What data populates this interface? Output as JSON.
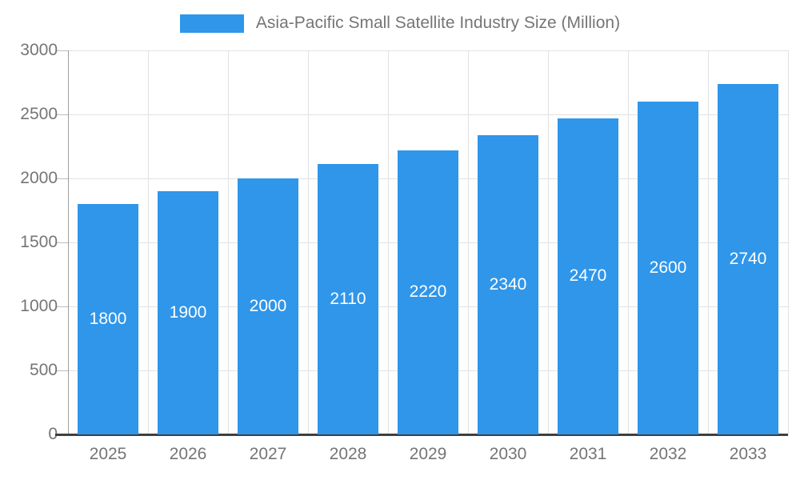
{
  "chart_data": {
    "type": "bar",
    "title": "Asia-Pacific Small Satellite Industry Size (Million)",
    "categories": [
      "2025",
      "2026",
      "2027",
      "2028",
      "2029",
      "2030",
      "2031",
      "2032",
      "2033"
    ],
    "values": [
      1800,
      1900,
      2000,
      2110,
      2220,
      2340,
      2470,
      2600,
      2740
    ],
    "series": [
      {
        "name": "Asia-Pacific Small Satellite Industry Size (Million)",
        "values": [
          1800,
          1900,
          2000,
          2110,
          2220,
          2340,
          2470,
          2600,
          2740
        ]
      }
    ],
    "xlabel": "",
    "ylabel": "",
    "ylim": [
      0,
      3000
    ],
    "yticks": [
      0,
      500,
      1000,
      1500,
      2000,
      2500,
      3000
    ],
    "grid": true,
    "legend_position": "top",
    "value_labels": "inside-center",
    "colors": {
      "bar": "#2f96ea",
      "value_label": "#ffffff",
      "axis_text": "#757575",
      "gridline": "#e2e2e2",
      "baseline": "#3f3f3f"
    }
  }
}
